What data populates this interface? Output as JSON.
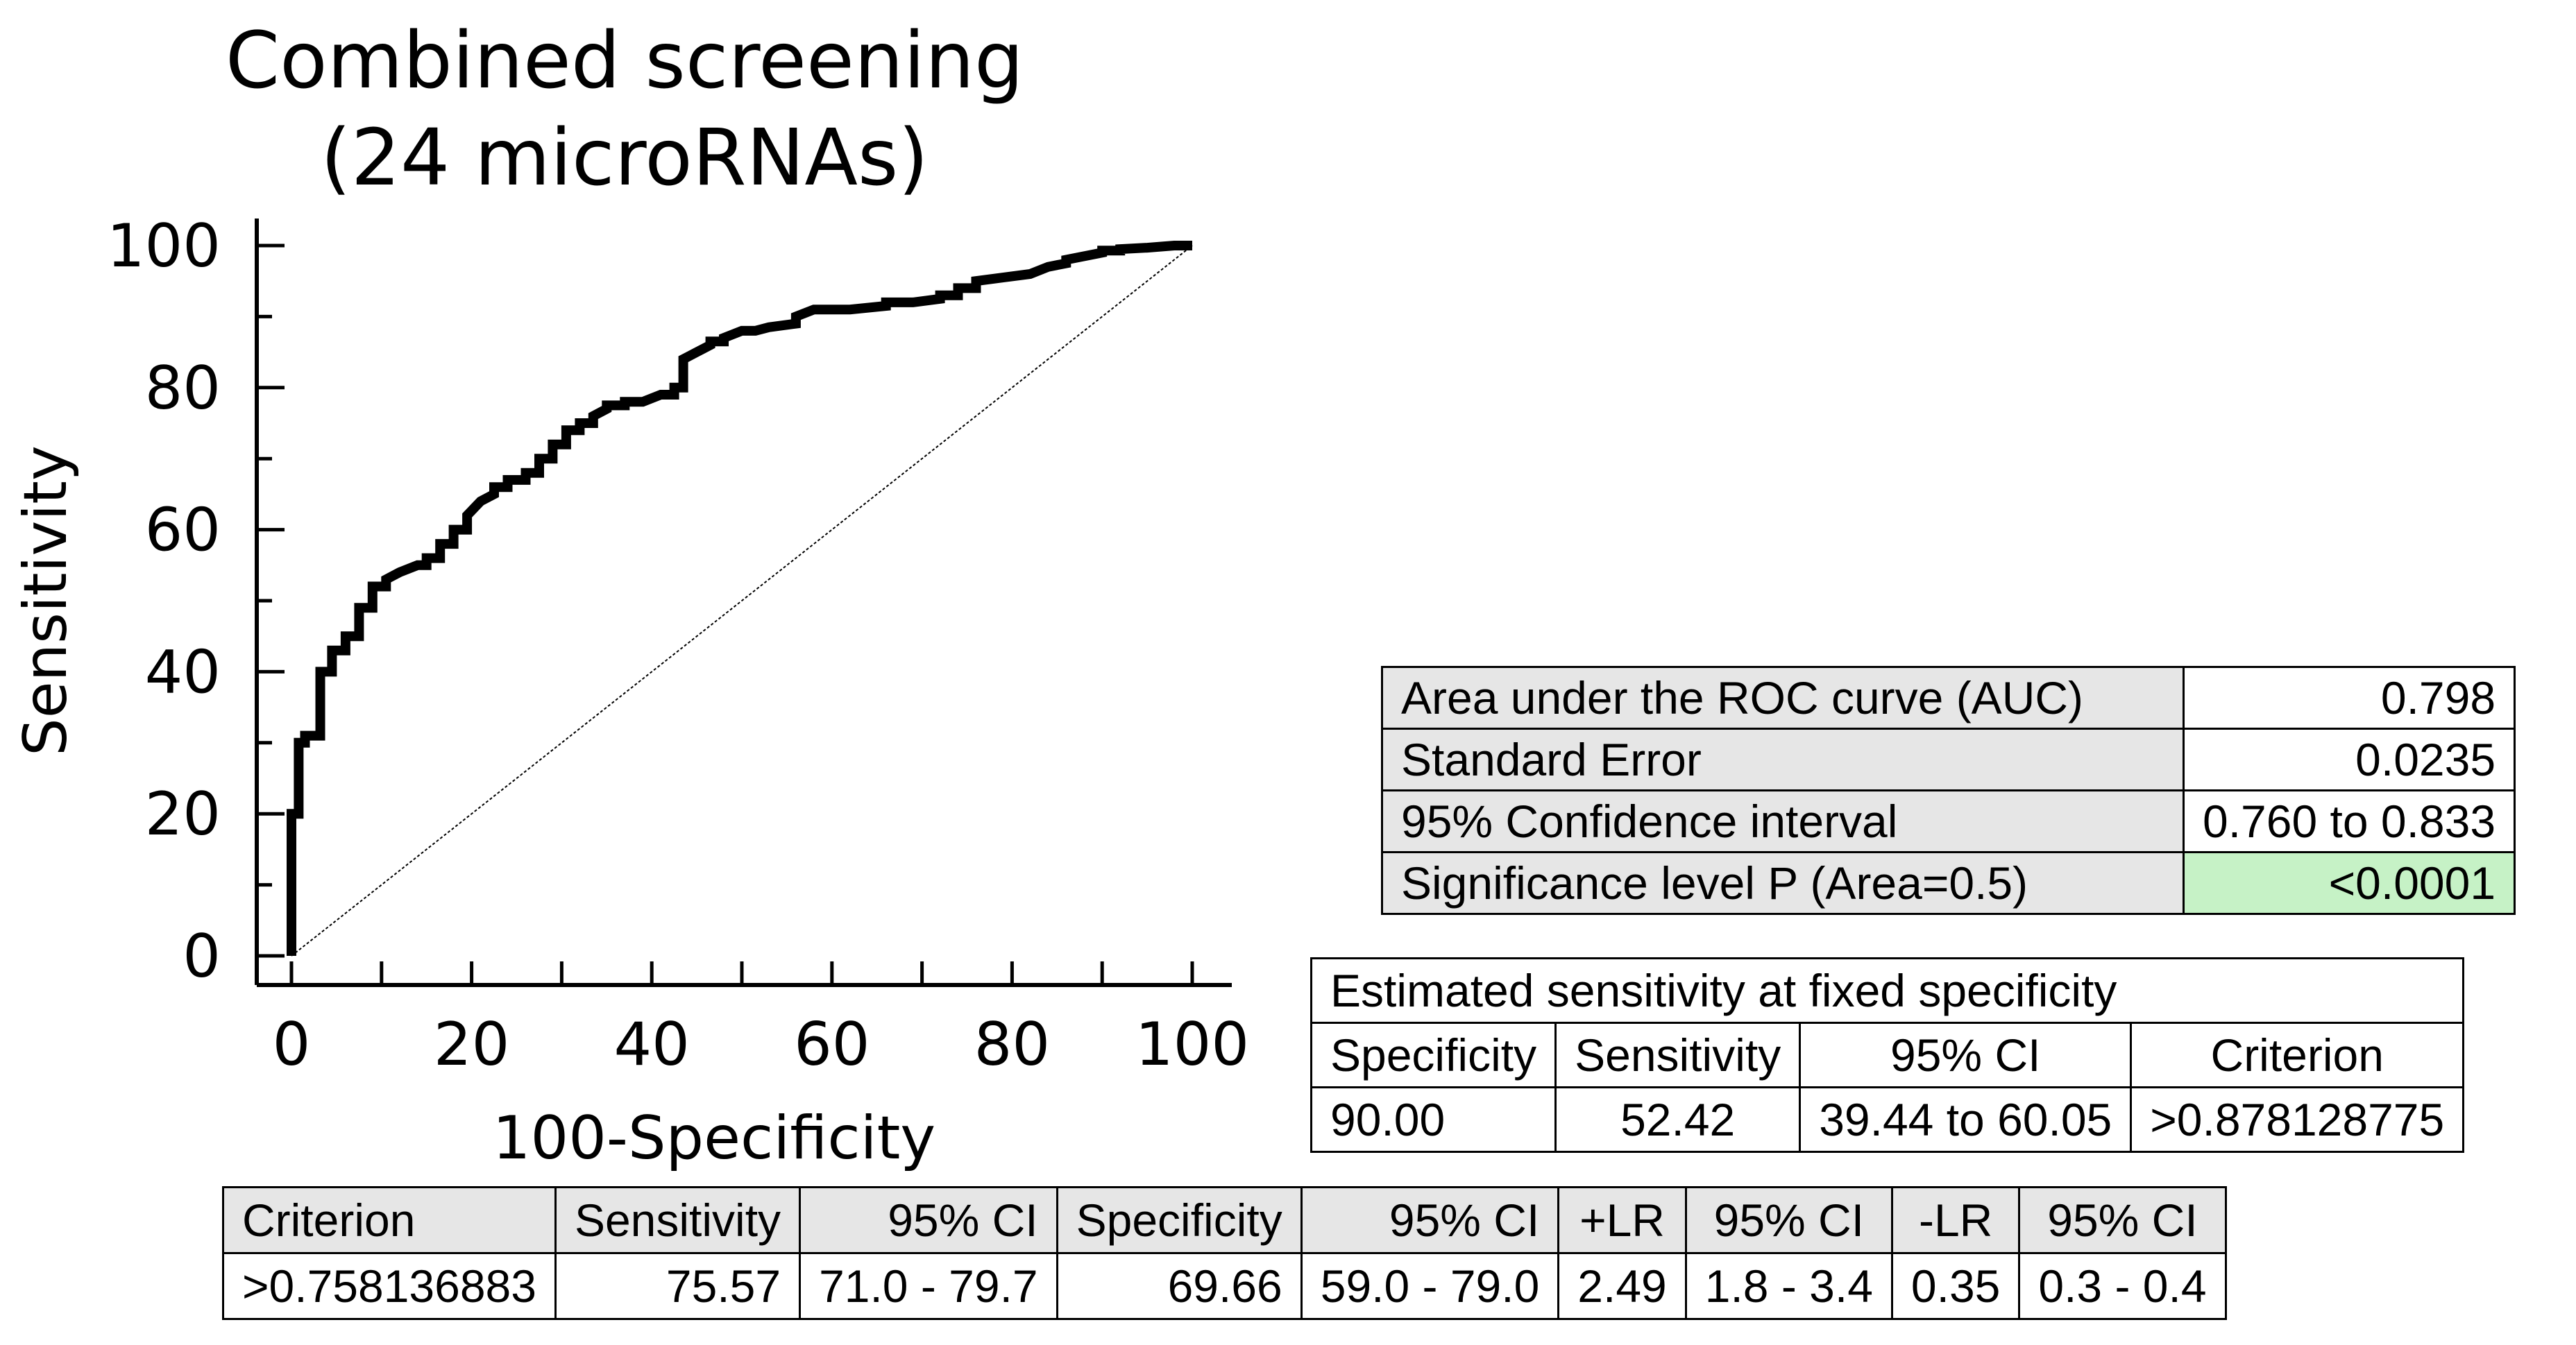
{
  "chart_data": {
    "type": "line",
    "title": "Combined screening\n(24 microRNAs)",
    "title_lines": [
      "Combined screening",
      "(24 microRNAs)"
    ],
    "xlabel": "100-Specificity",
    "ylabel": "Sensitivity",
    "xlim": [
      0,
      100
    ],
    "ylim": [
      0,
      100
    ],
    "x_ticks": [
      0,
      20,
      40,
      60,
      80,
      100
    ],
    "y_ticks": [
      0,
      20,
      40,
      60,
      80,
      100
    ],
    "grid": false,
    "series": [
      {
        "x": [
          0,
          0,
          0.8,
          0.8,
          1.5,
          1.5,
          3.2,
          3.2,
          4.5,
          4.5,
          6,
          6,
          7.5,
          7.5,
          9,
          9,
          10.5,
          10.5,
          12,
          14,
          15,
          15,
          16.5,
          16.5,
          18,
          18,
          19.5,
          19.5,
          21,
          22.5,
          22.5,
          24,
          24,
          26,
          26,
          27.5,
          27.5,
          29,
          29,
          30.5,
          30.5,
          32,
          32,
          33.5,
          33.5,
          35,
          35,
          37,
          37,
          39,
          41,
          42.5,
          42.5,
          43.5,
          43.5,
          45,
          46.5,
          46.5,
          48,
          48,
          50,
          51.5,
          53,
          56,
          56,
          58,
          62,
          66,
          66,
          69,
          72,
          72,
          74,
          74,
          76,
          76,
          79,
          82,
          82,
          84,
          84,
          86,
          86,
          88,
          90,
          90,
          92,
          92,
          95,
          98,
          100
        ],
        "y": [
          0,
          20,
          20,
          30,
          30,
          31,
          31,
          40,
          40,
          43,
          43,
          45,
          45,
          49,
          49,
          52,
          52,
          53,
          54,
          55,
          55,
          56,
          56,
          58,
          58,
          60,
          60,
          62,
          64,
          65,
          66,
          66,
          67,
          67,
          68,
          68,
          70,
          70,
          72,
          72,
          74,
          74,
          75,
          75,
          76,
          77,
          77.5,
          77.5,
          78,
          78,
          79,
          79,
          80,
          80,
          84,
          85,
          86,
          86.5,
          86.5,
          87,
          88,
          88,
          88.5,
          89,
          90,
          91,
          91,
          91.5,
          92,
          92,
          92.5,
          93,
          93,
          94,
          94,
          95,
          95.5,
          96,
          96,
          97,
          97,
          97.5,
          98,
          98.5,
          99,
          99.3,
          99.3,
          99.5,
          99.7,
          100,
          100
        ]
      }
    ],
    "reference_line": {
      "x": [
        0,
        100
      ],
      "y": [
        0,
        100
      ]
    }
  },
  "auc_table": {
    "rows": [
      {
        "label": "Area under the ROC curve (AUC)",
        "value": "0.798"
      },
      {
        "label": "Standard Error",
        "value": "0.0235"
      },
      {
        "label": "95% Confidence interval",
        "value": "0.760 to 0.833"
      },
      {
        "label": "Significance level P (Area=0.5)",
        "value": "<0.0001"
      }
    ],
    "highlight_color": "#c6f2c6"
  },
  "fixed_spec_table": {
    "caption": "Estimated sensitivity at fixed specificity",
    "headers": [
      "Specificity",
      "Sensitivity",
      "95% CI",
      "Criterion"
    ],
    "row": [
      "90.00",
      "52.42",
      "39.44 to 60.05",
      ">0.878128775"
    ]
  },
  "criterion_table": {
    "headers": [
      "Criterion",
      "Sensitivity",
      "95% CI",
      "Specificity",
      "95% CI",
      "+LR",
      "95% CI",
      "-LR",
      "95% CI"
    ],
    "row": [
      ">0.758136883",
      "75.57",
      "71.0 - 79.7",
      "69.66",
      "59.0 - 79.0",
      "2.49",
      "1.8 - 3.4",
      "0.35",
      "0.3 - 0.4"
    ]
  }
}
